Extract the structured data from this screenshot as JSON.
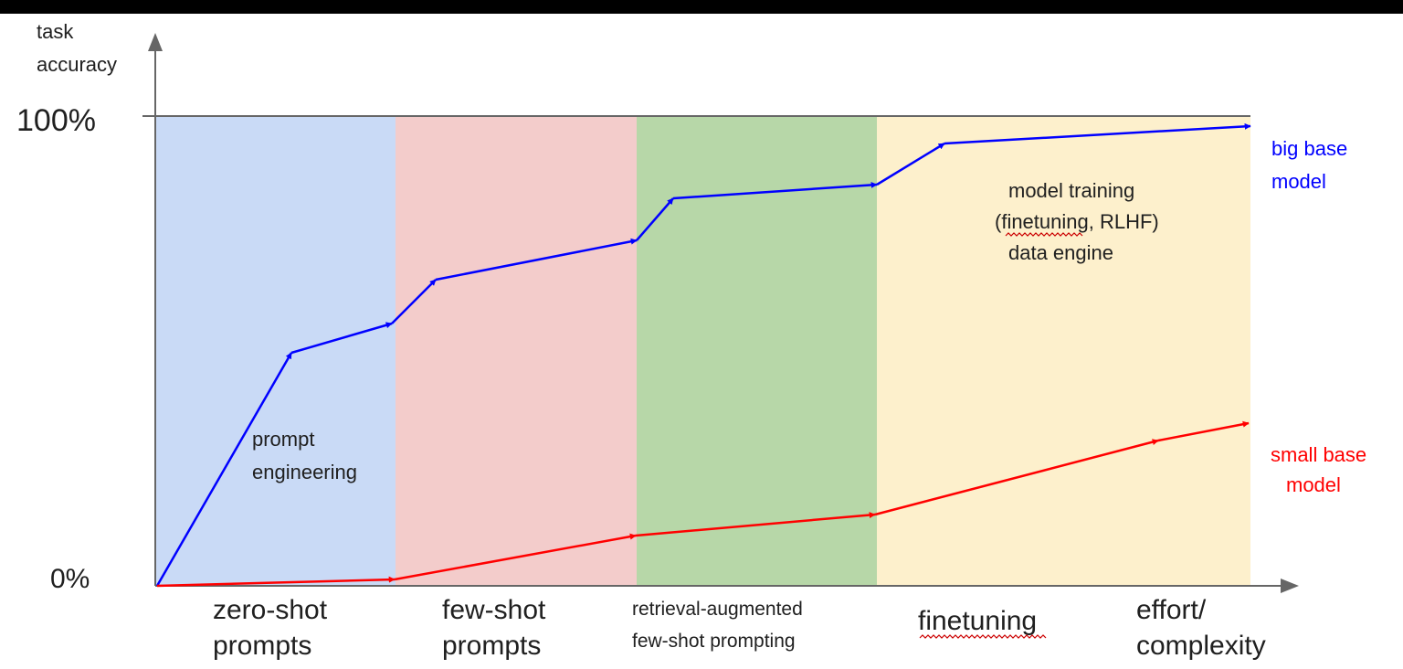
{
  "y_axis": {
    "label_line1": "task",
    "label_line2": "accuracy",
    "tick_top": "100%",
    "tick_bottom": "0%"
  },
  "x_axis": {
    "stage_1": [
      "zero-shot",
      "prompts"
    ],
    "stage_2": [
      "few-shot",
      "prompts"
    ],
    "stage_3": [
      "retrieval-augmented",
      "few-shot prompting"
    ],
    "stage_4": "finetuning",
    "axis_label": [
      "effort/",
      "complexity"
    ]
  },
  "region_notes": {
    "prompt_engineering": [
      "prompt",
      "engineering"
    ],
    "model_training": [
      "model training",
      "(finetuning, RLHF)",
      "data engine"
    ]
  },
  "series_labels": {
    "big": [
      "big base",
      "model"
    ],
    "small": [
      "small base",
      "model"
    ]
  },
  "colors": {
    "zero_shot_band": "#c9daf6",
    "few_shot_band": "#f3cccb",
    "retrieval_band": "#b7d7a8",
    "finetuning_band": "#fdf0cc",
    "big_model": "#0000ff",
    "small_model": "#ff0000",
    "axis": "#666666"
  }
}
